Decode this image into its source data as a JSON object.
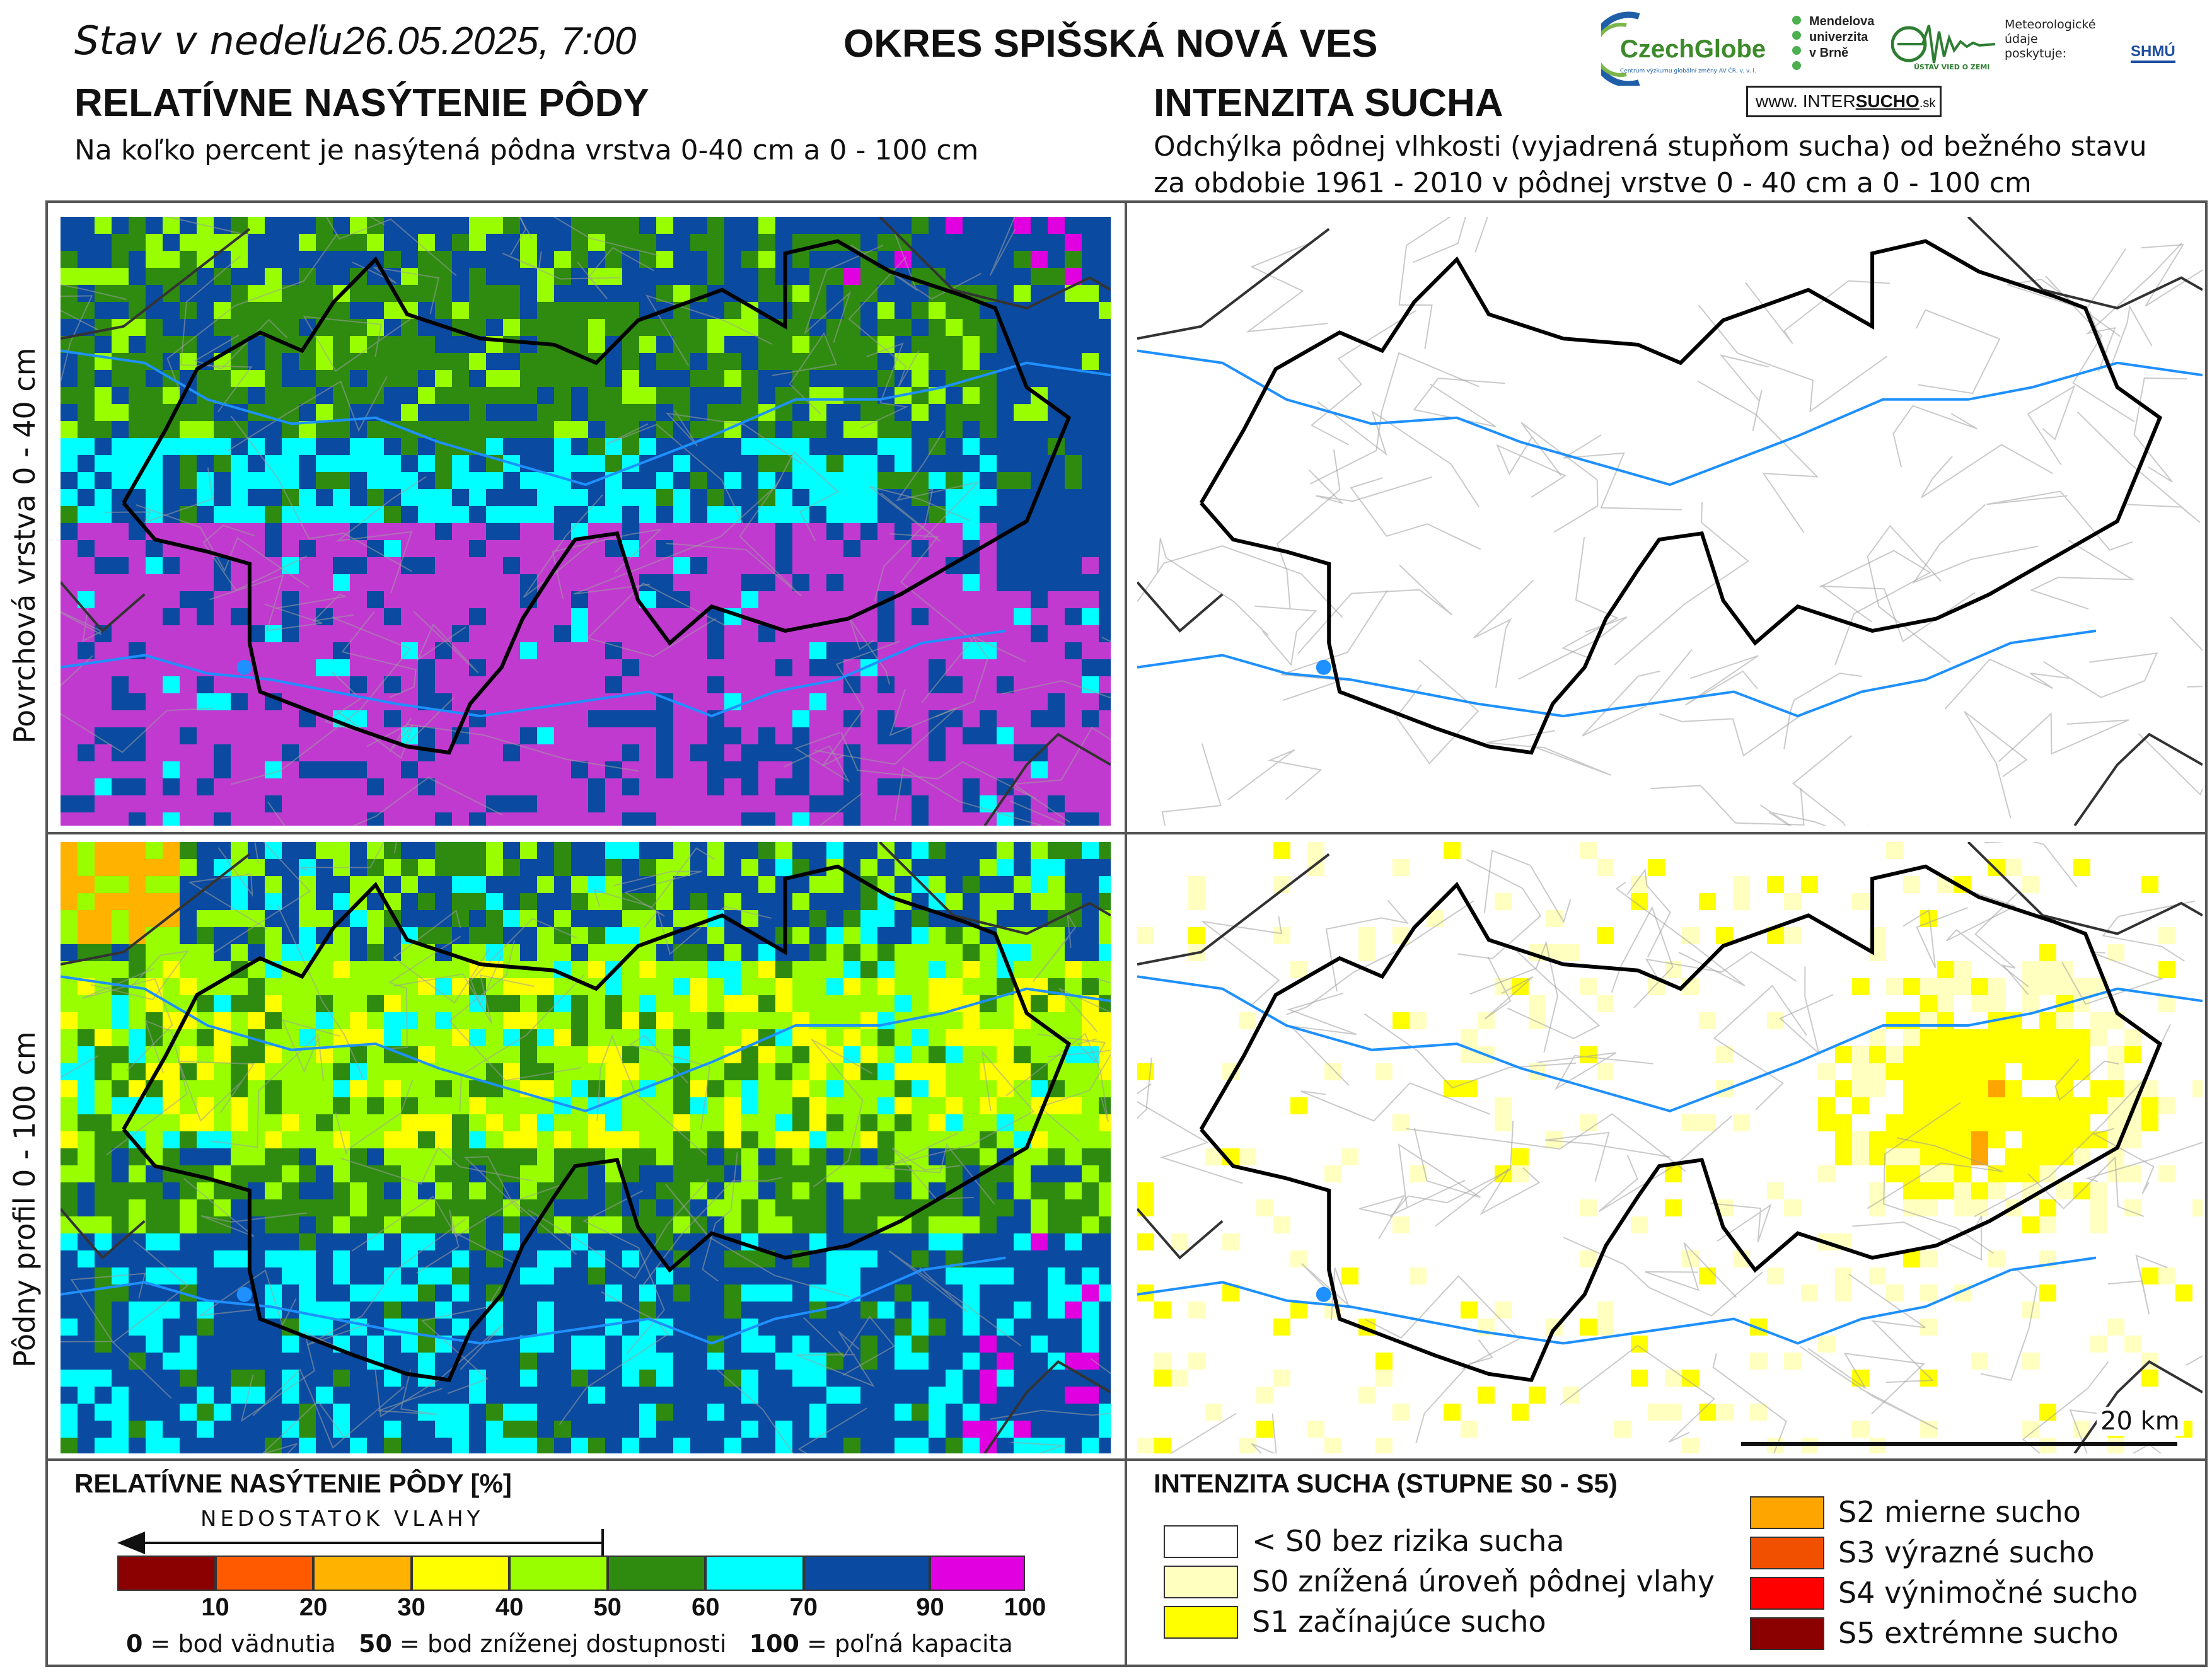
{
  "header": {
    "date_prefix": "Stav v nedeľu",
    "date_value": "26.05.2025, 7:00",
    "district": "OKRES  SPIŠSKÁ NOVÁ VES"
  },
  "left_section": {
    "title": "RELATÍVNE NASÝTENIE PÔDY",
    "subtitle": "Na koľko percent je nasýtená pôdna vrstva 0-40 cm a 0 - 100 cm"
  },
  "right_section": {
    "title": "INTENZITA SUCHA",
    "subtitle_line1": "Odchýlka pôdnej vlhkosti (vyjadrená stupňom sucha) od bežného stavu",
    "subtitle_line2": "za obdobie 1961 - 2010 v pôdnej vrstve 0 - 40 cm a 0 - 100 cm"
  },
  "logos": {
    "czechglobe": "CzechGlobe",
    "czechglobe_small": "Centrum výzkumu globální změny AV ČR, v. v. i.",
    "mendel_line1": "Mendelova",
    "mendel_line2": "univerzita",
    "mendel_line3": "v Brně",
    "ustav": "ÚSTAV VIED O ZEMI",
    "meteo_line1": "Meteorologické",
    "meteo_line2": "údaje",
    "meteo_line3": "poskytuje:",
    "shmu": "SHMÚ",
    "intersucho_www": "www.",
    "intersucho_a": "INTER",
    "intersucho_b": "SUCHO",
    "intersucho_c": ".sk"
  },
  "row_labels": {
    "top": "Povrchová vrstva 0 - 40 cm",
    "bottom": "Pôdny profil 0 - 100 cm"
  },
  "scale_bar": {
    "label": "20 km"
  },
  "legend_saturation": {
    "title": "RELATÍVNE NASÝTENIE PÔDY [%]",
    "arrow_label": "NEDOSTATOK VLAHY",
    "colors": [
      "#8b0000",
      "#ff5a00",
      "#ffb300",
      "#ffff00",
      "#99ff00",
      "#2e8b10",
      "#00ffff",
      "#0a4aa0",
      "#e000e0"
    ],
    "ticks": [
      "10",
      "20",
      "30",
      "40",
      "50",
      "60",
      "70",
      "90",
      "100"
    ],
    "note_0_num": "0",
    "note_0_txt": " = bod vädnutia",
    "note_50_num": "50",
    "note_50_txt": " = bod zníženej dostupnosti",
    "note_100_num": "100",
    "note_100_txt": " = poľná kapacita"
  },
  "legend_drought": {
    "title": "INTENZITA SUCHA (STUPNE S0 - S5)",
    "items": [
      {
        "label": "< S0 bez rizika sucha",
        "color": "#ffffff"
      },
      {
        "label": "S0 znížená úroveň pôdnej vlahy",
        "color": "#ffffc0"
      },
      {
        "label": "S1 začínajúce sucho",
        "color": "#ffff00"
      },
      {
        "label": "S2 mierne sucho",
        "color": "#ffa500"
      },
      {
        "label": "S3 výrazné sucho",
        "color": "#f05000"
      },
      {
        "label": "S4 výnimočné sucho",
        "color": "#ff0000"
      },
      {
        "label": "S5 extrémne sucho",
        "color": "#8b0000"
      }
    ]
  }
}
